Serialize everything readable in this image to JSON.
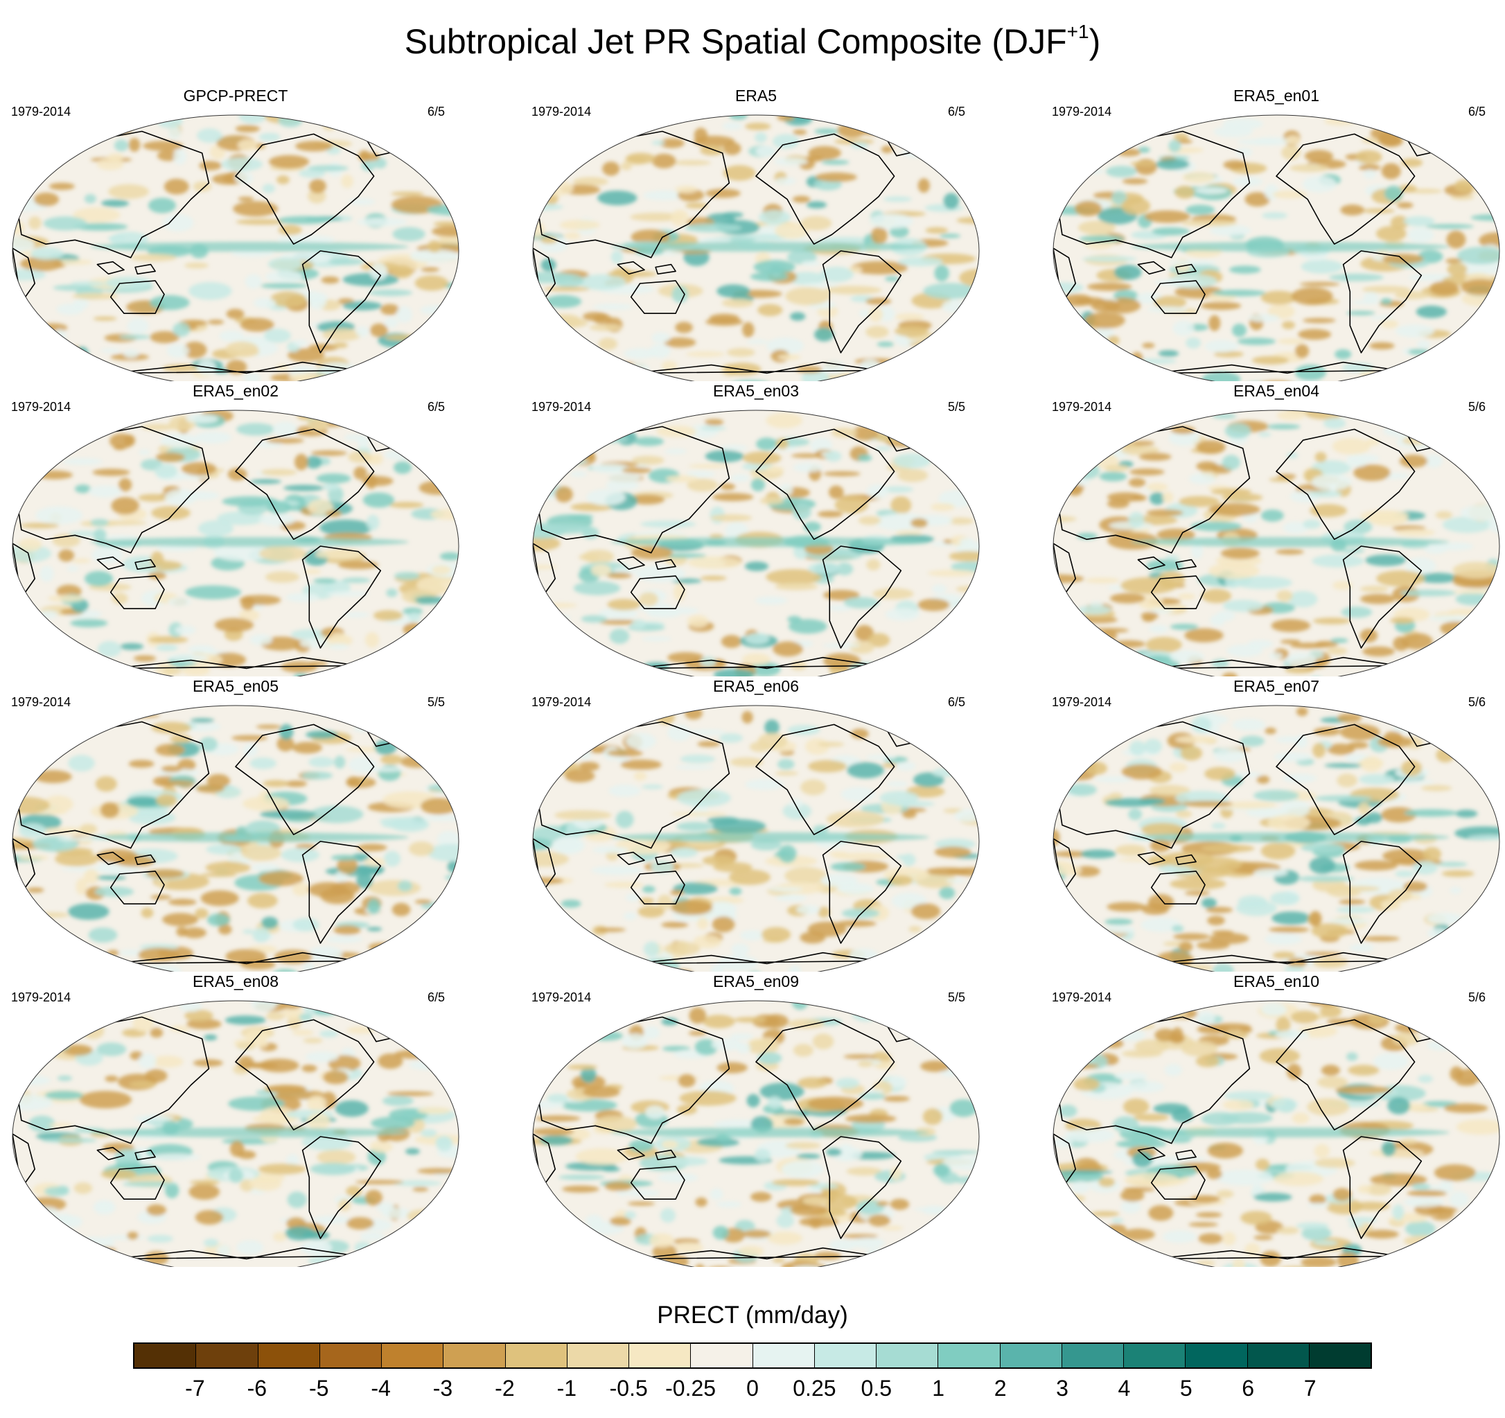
{
  "title": "Subtropical Jet PR Spatial Composite (DJF",
  "title_superscript": "+1",
  "title_end": ")",
  "panels": [
    {
      "name": "GPCP-PRECT",
      "years": "1979-2014",
      "count": "6/5"
    },
    {
      "name": "ERA5",
      "years": "1979-2014",
      "count": "6/5"
    },
    {
      "name": "ERA5_en01",
      "years": "1979-2014",
      "count": "6/5"
    },
    {
      "name": "ERA5_en02",
      "years": "1979-2014",
      "count": "6/5"
    },
    {
      "name": "ERA5_en03",
      "years": "1979-2014",
      "count": "5/5"
    },
    {
      "name": "ERA5_en04",
      "years": "1979-2014",
      "count": "5/6"
    },
    {
      "name": "ERA5_en05",
      "years": "1979-2014",
      "count": "5/5"
    },
    {
      "name": "ERA5_en06",
      "years": "1979-2014",
      "count": "6/5"
    },
    {
      "name": "ERA5_en07",
      "years": "1979-2014",
      "count": "5/6"
    },
    {
      "name": "ERA5_en08",
      "years": "1979-2014",
      "count": "6/5"
    },
    {
      "name": "ERA5_en09",
      "years": "1979-2014",
      "count": "5/5"
    },
    {
      "name": "ERA5_en10",
      "years": "1979-2014",
      "count": "5/6"
    }
  ],
  "colorbar": {
    "title": "PRECT (mm/day)",
    "ticks": [
      "-7",
      "-6",
      "-5",
      "-4",
      "-3",
      "-2",
      "-1",
      "-0.5",
      "-0.25",
      "0",
      "0.25",
      "0.5",
      "1",
      "2",
      "3",
      "4",
      "5",
      "6",
      "7"
    ],
    "colors": [
      "#543005",
      "#6e400c",
      "#8c510a",
      "#a6661c",
      "#bf812d",
      "#cfa052",
      "#dfc27d",
      "#ecd9a8",
      "#f6e8c3",
      "#f5f1e8",
      "#e6f3f1",
      "#c7eae5",
      "#a6dcd3",
      "#80cdc1",
      "#5ab4ac",
      "#35978f",
      "#1b8276",
      "#01665e",
      "#02574d",
      "#003c30"
    ]
  }
}
